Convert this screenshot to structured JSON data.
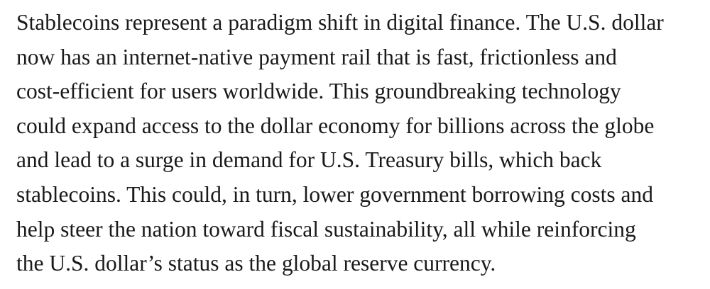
{
  "article": {
    "paragraph_lines": [
      "Stablecoins represent a paradigm shift in digital finance. The U.S. dollar",
      "now has an internet-native payment rail that is fast, frictionless and",
      "cost-efficient for users worldwide. This groundbreaking technology",
      "could expand access to the dollar economy for billions across the globe",
      "and lead to a surge in demand for U.S. Treasury bills, which back",
      "stablecoins. This could, in turn, lower government borrowing costs and",
      "help steer the nation toward fiscal sustainability, all while reinforcing",
      "the U.S. dollar’s status as the global reserve currency."
    ]
  }
}
